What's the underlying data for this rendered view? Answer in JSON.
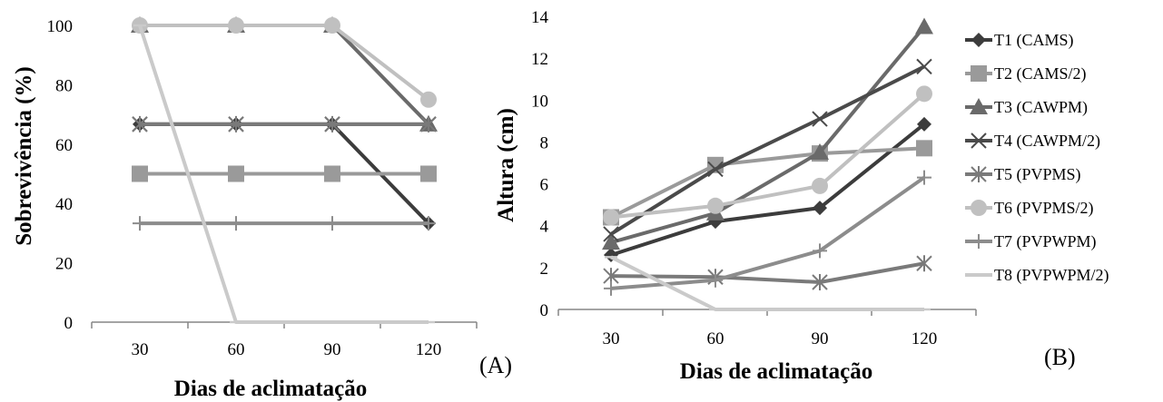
{
  "chart_data": [
    {
      "type": "line",
      "panel_label": "(A)",
      "xlabel": "Dias de aclimatação",
      "ylabel": "Sobrevivência (%)",
      "categories": [
        "30",
        "60",
        "90",
        "120"
      ],
      "ylim": [
        0,
        100
      ],
      "yticks": [
        0,
        20,
        40,
        60,
        80,
        100
      ],
      "grid": false,
      "series": [
        {
          "name": "T1 (CAMS)",
          "values": [
            66.7,
            66.7,
            66.7,
            33.3
          ],
          "color": "#3c3c3c",
          "marker": "diamond"
        },
        {
          "name": "T2 (CAMS/2)",
          "values": [
            50,
            50,
            50,
            50
          ],
          "color": "#9a9a9a",
          "marker": "square"
        },
        {
          "name": "T3 (CAWPM)",
          "values": [
            100,
            100,
            100,
            66.7
          ],
          "color": "#6a6a6a",
          "marker": "triangle"
        },
        {
          "name": "T4 (CAWPM/2)",
          "values": [
            66.7,
            66.7,
            66.7,
            66.7
          ],
          "color": "#4a4a4a",
          "marker": "x"
        },
        {
          "name": "T5 (PVPMS)",
          "values": [
            66.7,
            66.7,
            66.7,
            66.7
          ],
          "color": "#7a7a7a",
          "marker": "asterisk"
        },
        {
          "name": "T6 (PVPMS/2)",
          "values": [
            100,
            100,
            100,
            75
          ],
          "color": "#c0c0c0",
          "marker": "circle"
        },
        {
          "name": "T7 (PVPWPM)",
          "values": [
            33.3,
            33.3,
            33.3,
            33.3
          ],
          "color": "#8c8c8c",
          "marker": "plus"
        },
        {
          "name": "T8 (PVPWPM/2)",
          "values": [
            100,
            0,
            0,
            0
          ],
          "color": "#cacaca",
          "marker": "dash"
        }
      ]
    },
    {
      "type": "line",
      "panel_label": "(B)",
      "xlabel": "Dias de aclimatação",
      "ylabel": "Altura (cm)",
      "categories": [
        "30",
        "60",
        "90",
        "120"
      ],
      "ylim": [
        0,
        14
      ],
      "yticks": [
        0,
        2,
        4,
        6,
        8,
        10,
        12,
        14
      ],
      "grid": false,
      "legend": "right",
      "series": [
        {
          "name": "T1 (CAMS)",
          "values": [
            2.6,
            4.2,
            4.85,
            8.85
          ],
          "color": "#3c3c3c",
          "marker": "diamond"
        },
        {
          "name": "T2 (CAMS/2)",
          "values": [
            4.4,
            6.9,
            7.45,
            7.7
          ],
          "color": "#9a9a9a",
          "marker": "square"
        },
        {
          "name": "T3 (CAWPM)",
          "values": [
            3.2,
            4.6,
            7.5,
            13.5
          ],
          "color": "#6a6a6a",
          "marker": "triangle"
        },
        {
          "name": "T4 (CAWPM/2)",
          "values": [
            3.6,
            6.7,
            9.1,
            11.6
          ],
          "color": "#4a4a4a",
          "marker": "x"
        },
        {
          "name": "T5 (PVPMS)",
          "values": [
            1.6,
            1.55,
            1.3,
            2.2
          ],
          "color": "#7a7a7a",
          "marker": "asterisk"
        },
        {
          "name": "T6 (PVPMS/2)",
          "values": [
            4.4,
            4.95,
            5.9,
            10.3
          ],
          "color": "#c0c0c0",
          "marker": "circle"
        },
        {
          "name": "T7 (PVPWPM)",
          "values": [
            1.0,
            1.4,
            2.8,
            6.3
          ],
          "color": "#8c8c8c",
          "marker": "plus"
        },
        {
          "name": "T8 (PVPWPM/2)",
          "values": [
            2.5,
            0,
            0,
            0
          ],
          "color": "#cacaca",
          "marker": "dash"
        }
      ]
    }
  ]
}
